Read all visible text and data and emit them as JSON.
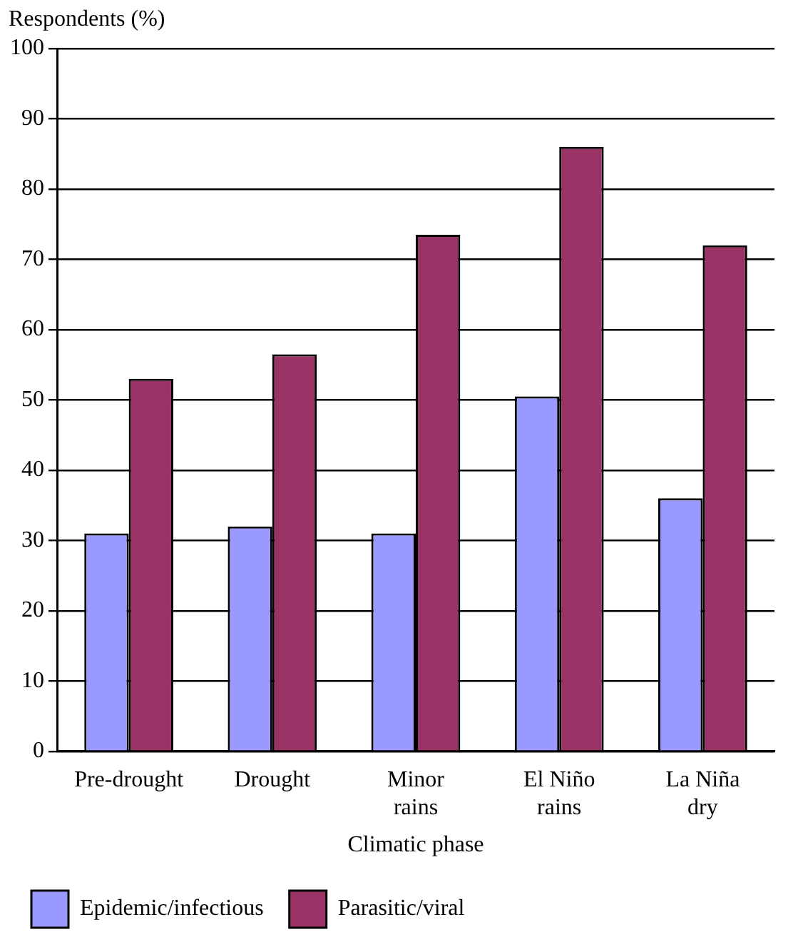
{
  "chart_data": {
    "type": "bar",
    "ylabel": "Respondents (%)",
    "xlabel": "Climatic phase",
    "categories": [
      "Pre-drought",
      "Drought",
      "Minor rains",
      "El Niño rains",
      "La Niña dry"
    ],
    "series": [
      {
        "name": "Epidemic/infectious",
        "color": "#9999ff",
        "values": [
          31,
          32,
          31,
          50.5,
          36
        ]
      },
      {
        "name": "Parasitic/viral",
        "color": "#993366",
        "values": [
          53,
          56.5,
          73.5,
          86,
          72
        ]
      }
    ],
    "ylim": [
      0,
      100
    ],
    "yticks": [
      0,
      10,
      20,
      30,
      40,
      50,
      60,
      70,
      80,
      90,
      100
    ],
    "grid": "y",
    "legend": "bottom"
  }
}
